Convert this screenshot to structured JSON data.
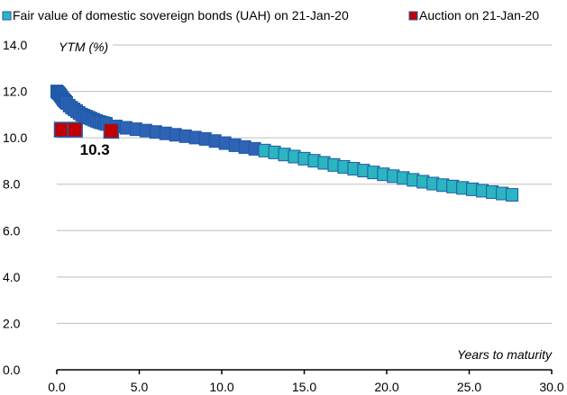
{
  "chart_data": {
    "type": "scatter",
    "legend": {
      "placement": "top"
    },
    "xlabel": "Years to maturity",
    "ylabel": "YTM (%)",
    "xlim": [
      0,
      30
    ],
    "ylim": [
      0,
      14
    ],
    "x_ticks": [
      "0.0",
      "5.0",
      "10.0",
      "15.0",
      "20.0",
      "25.0",
      "30.0"
    ],
    "y_ticks": [
      "0.0",
      "2.0",
      "4.0",
      "6.0",
      "8.0",
      "10.0",
      "12.0",
      "14.0"
    ],
    "grid": "horizontal",
    "series": [
      {
        "name": "Fair value of domestic sovereign bonds (UAH) on 21-Jan-20",
        "color": "#2bb5c0",
        "curve": [
          [
            0,
            12.0
          ],
          [
            0.15,
            11.9
          ],
          [
            0.4,
            11.65
          ],
          [
            0.8,
            11.35
          ],
          [
            1.5,
            11.0
          ],
          [
            2.5,
            10.7
          ],
          [
            3.5,
            10.5
          ],
          [
            5,
            10.35
          ],
          [
            7,
            10.15
          ],
          [
            9,
            9.95
          ],
          [
            11,
            9.65
          ],
          [
            13,
            9.4
          ],
          [
            15,
            9.1
          ],
          [
            17,
            8.8
          ],
          [
            20,
            8.4
          ],
          [
            23,
            8.0
          ],
          [
            26,
            7.7
          ],
          [
            28,
            7.5
          ]
        ]
      },
      {
        "name": "Auction on 21-Jan-20",
        "color": "#c00000",
        "x": [
          0.3,
          1.1,
          3.3
        ],
        "y": [
          10.35,
          10.35,
          10.3
        ],
        "data_label": "10.3"
      }
    ]
  }
}
